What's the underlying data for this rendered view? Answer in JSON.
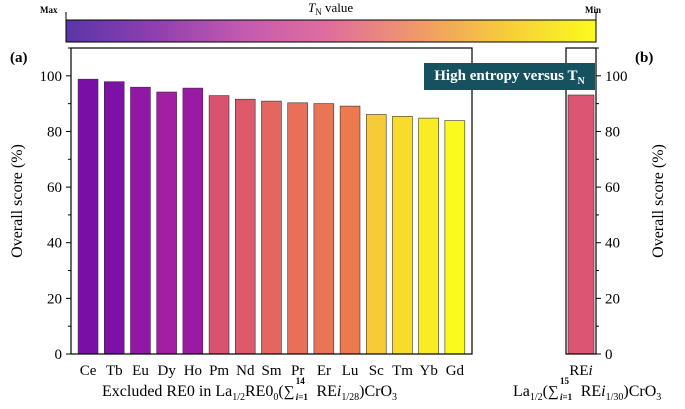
{
  "colorbar": {
    "title_main": "T",
    "title_sub": "N",
    "title_rest": " value",
    "min_label": "Min",
    "max_label": "Max",
    "colors": [
      "#5a36a8",
      "#8e3fb0",
      "#c35ab0",
      "#e06f9c",
      "#f09968",
      "#f7cd3a",
      "#fafb1c"
    ]
  },
  "chart_data": [
    {
      "type": "bar",
      "panel_label": "(a)",
      "categories": [
        "Ce",
        "Tb",
        "Eu",
        "Dy",
        "Ho",
        "Pm",
        "Nd",
        "Sm",
        "Pr",
        "Er",
        "Lu",
        "Sc",
        "Tm",
        "Yb",
        "Gd"
      ],
      "values": [
        98.8,
        97.9,
        95.9,
        94.2,
        95.6,
        92.9,
        91.6,
        90.9,
        90.3,
        90.0,
        89.1,
        86.1,
        85.4,
        84.8,
        83.9
      ],
      "colors": [
        "#7a0fa6",
        "#7d10a5",
        "#9118a4",
        "#a21ea2",
        "#9a1ba3",
        "#d9526f",
        "#de5a6a",
        "#e4665e",
        "#e96f59",
        "#ea7456",
        "#ed7a4f",
        "#f6cb37",
        "#f8dc2d",
        "#f9ec24",
        "#fafa1c"
      ],
      "ylabel": "Overall score (%)",
      "ylim": [
        0,
        110
      ],
      "yticks": [
        0,
        20,
        40,
        60,
        80,
        100
      ],
      "xlabel": "Excluded RE0 in La1/2RE01/2(∑i=114 REi1/28)CrO3"
    },
    {
      "type": "bar",
      "panel_label": "(b)",
      "categories": [
        "REi"
      ],
      "values": [
        93.1
      ],
      "colors": [
        "#dc5674"
      ],
      "ylabel": "Overall score (%)",
      "ylim": [
        0,
        110
      ],
      "yticks": [
        0,
        20,
        40,
        60,
        80,
        100
      ],
      "annotation": "High entropy versus T",
      "annotation_sub": "N",
      "xlabel": "La1/2(∑i=115 REi1/30)CrO3"
    }
  ]
}
